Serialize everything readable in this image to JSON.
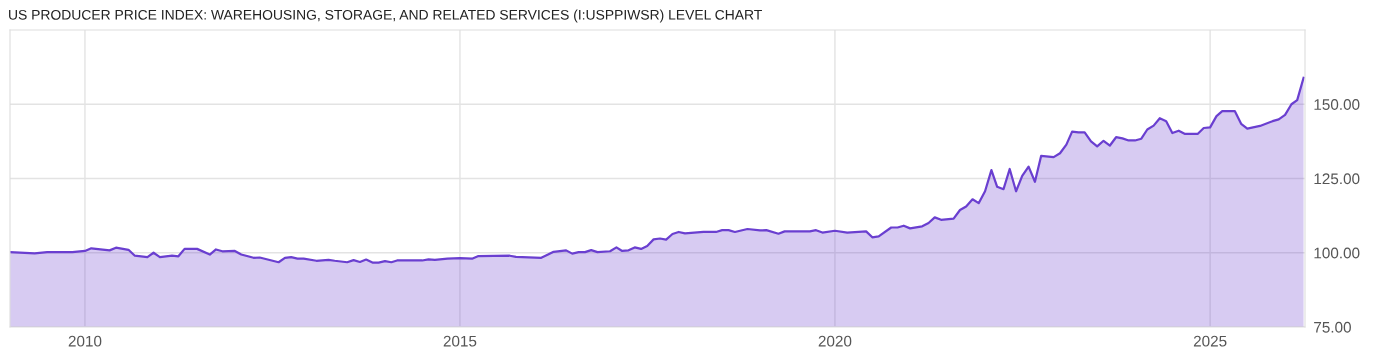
{
  "chart_data": {
    "type": "area",
    "title": "US PRODUCER PRICE INDEX: WAREHOUSING, STORAGE, AND RELATED SERVICES (I:USPPIWSR) LEVEL CHART",
    "x": [
      "2009-01",
      "2009-05",
      "2009-07",
      "2009-11",
      "2010-01",
      "2010-02",
      "2010-05",
      "2010-06",
      "2010-08",
      "2010-09",
      "2010-11",
      "2010-12",
      "2011-01",
      "2011-03",
      "2011-04",
      "2011-05",
      "2011-07",
      "2011-09",
      "2011-10",
      "2011-11",
      "2012-01",
      "2012-02",
      "2012-04",
      "2012-05",
      "2012-08",
      "2012-09",
      "2012-10",
      "2012-11",
      "2012-12",
      "2013-02",
      "2013-04",
      "2013-05",
      "2013-07",
      "2013-08",
      "2013-09",
      "2013-10",
      "2013-11",
      "2013-12",
      "2014-01",
      "2014-02",
      "2014-03",
      "2014-07",
      "2014-08",
      "2014-09",
      "2014-11",
      "2015-01",
      "2015-03",
      "2015-04",
      "2015-09",
      "2015-10",
      "2016-02",
      "2016-04",
      "2016-06",
      "2016-07",
      "2016-08",
      "2016-09",
      "2016-10",
      "2016-11",
      "2017-01",
      "2017-02",
      "2017-03",
      "2017-04",
      "2017-05",
      "2017-06",
      "2017-07",
      "2017-08",
      "2017-09",
      "2017-10",
      "2017-11",
      "2017-12",
      "2018-01",
      "2018-04",
      "2018-06",
      "2018-07",
      "2018-08",
      "2018-09",
      "2018-11",
      "2019-01",
      "2019-02",
      "2019-04",
      "2019-05",
      "2019-09",
      "2019-10",
      "2019-11",
      "2020-01",
      "2020-03",
      "2020-06",
      "2020-07",
      "2020-08",
      "2020-10",
      "2020-11",
      "2020-12",
      "2021-01",
      "2021-03",
      "2021-04",
      "2021-05",
      "2021-06",
      "2021-08",
      "2021-09",
      "2021-10",
      "2021-11",
      "2021-12",
      "2022-01",
      "2022-02",
      "2022-03",
      "2022-04",
      "2022-05",
      "2022-06",
      "2022-07",
      "2022-08",
      "2022-09",
      "2022-10",
      "2022-12",
      "2023-01",
      "2023-02",
      "2023-03",
      "2023-04",
      "2023-05",
      "2023-06",
      "2023-07",
      "2023-08",
      "2023-09",
      "2023-10",
      "2023-11",
      "2023-12",
      "2024-01",
      "2024-02",
      "2024-03",
      "2024-04",
      "2024-05",
      "2024-06",
      "2024-07",
      "2024-08",
      "2024-09",
      "2024-11",
      "2024-12",
      "2025-01",
      "2025-02",
      "2025-03",
      "2025-05",
      "2025-06",
      "2025-07",
      "2025-09",
      "2025-11",
      "2025-12",
      "2026-01",
      "2026-02",
      "2026-03",
      "2026-04"
    ],
    "series": [
      {
        "color": "#6a3fd0",
        "values": [
          100.2,
          99.8,
          100.2,
          100.2,
          100.6,
          101.5,
          100.8,
          101.7,
          101.0,
          99.0,
          98.5,
          100.0,
          98.5,
          99.0,
          98.8,
          101.3,
          101.3,
          99.4,
          101.1,
          100.5,
          100.6,
          99.4,
          98.3,
          98.4,
          96.8,
          98.3,
          98.5,
          98.0,
          98.0,
          97.3,
          97.6,
          97.3,
          96.8,
          97.5,
          96.9,
          97.7,
          96.7,
          96.7,
          97.2,
          96.8,
          97.4,
          97.4,
          97.8,
          97.6,
          98.0,
          98.2,
          98.0,
          98.9,
          99.0,
          98.6,
          98.3,
          100.3,
          100.8,
          99.7,
          100.2,
          100.2,
          100.9,
          100.2,
          100.5,
          101.8,
          100.6,
          100.8,
          101.8,
          101.3,
          102.3,
          104.5,
          104.8,
          104.4,
          106.3,
          107.0,
          106.5,
          107.0,
          107.0,
          107.6,
          107.6,
          107.0,
          108.0,
          107.5,
          107.6,
          106.4,
          107.2,
          107.2,
          107.6,
          106.8,
          107.4,
          106.8,
          107.2,
          105.2,
          105.5,
          108.5,
          108.5,
          109.1,
          108.2,
          108.9,
          110.0,
          111.9,
          111.1,
          111.5,
          114.4,
          115.6,
          118.0,
          116.7,
          120.7,
          127.8,
          122.2,
          121.4,
          128.2,
          120.7,
          125.9,
          129.0,
          123.9,
          132.6,
          132.2,
          133.5,
          136.4,
          140.8,
          140.5,
          140.5,
          137.5,
          135.8,
          137.7,
          136.1,
          138.9,
          138.5,
          137.8,
          137.8,
          138.4,
          141.5,
          142.8,
          145.3,
          144.3,
          140.3,
          141.1,
          140.0,
          140.0,
          142.0,
          142.2,
          146.0,
          147.7,
          147.7,
          143.4,
          141.8,
          142.7,
          144.3,
          144.9,
          146.4,
          150.0,
          151.4,
          158.9
        ]
      }
    ],
    "xlim": [
      "2009-01-01",
      "2026-04-08"
    ],
    "xticks": [
      "2010",
      "2015",
      "2020",
      "2025"
    ],
    "ylim": [
      75,
      175
    ],
    "yticks": [
      {
        "value": 75,
        "label": "75.00"
      },
      {
        "value": 100,
        "label": "100.00"
      },
      {
        "value": 125,
        "label": "125.00"
      },
      {
        "value": 150,
        "label": "150.00"
      }
    ],
    "grid": true
  }
}
